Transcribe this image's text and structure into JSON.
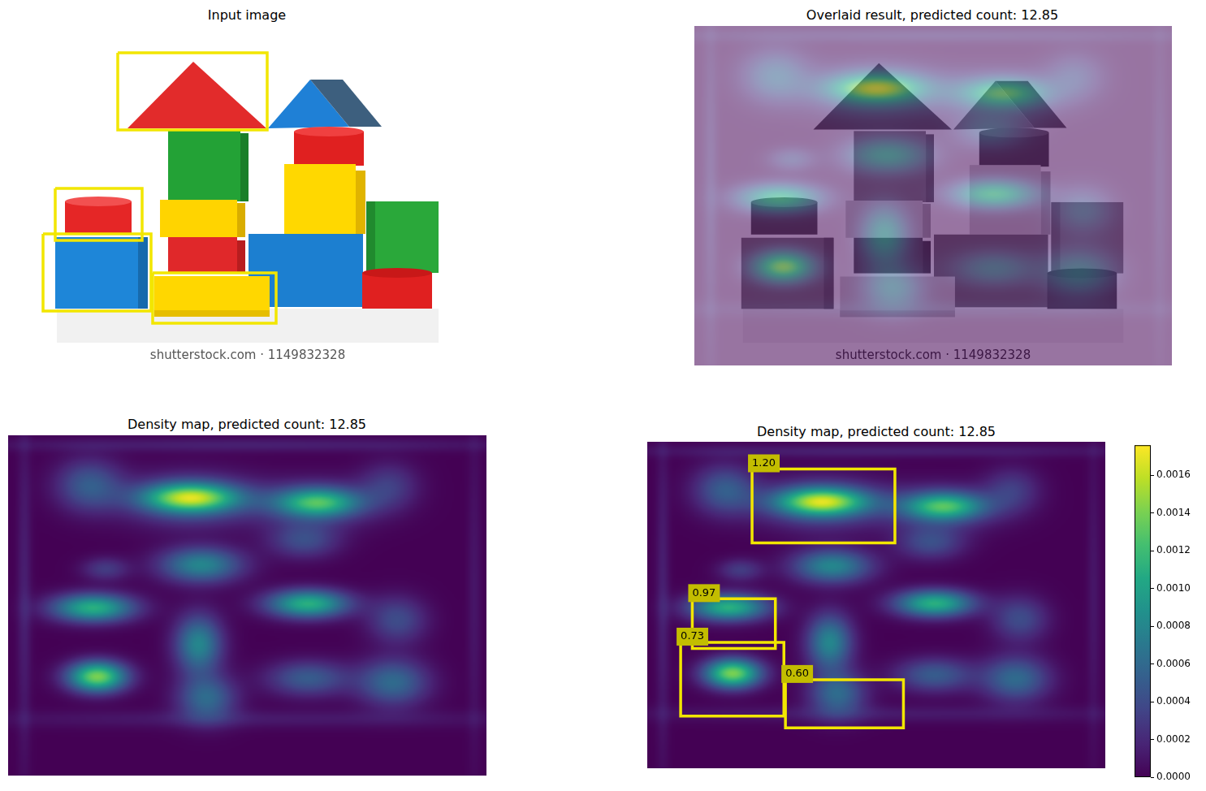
{
  "chart_data": [
    {
      "type": "image",
      "title": "Input image",
      "xlim": [
        0,
        590
      ],
      "ylim": [
        420,
        0
      ],
      "tick_labels": false,
      "watermark": "shutterstock.com · 1149832328",
      "boxes": [
        {
          "x0": 135,
          "y0": 35,
          "x1": 319,
          "y1": 130
        },
        {
          "x0": 58,
          "y0": 202,
          "x1": 165,
          "y1": 266
        },
        {
          "x0": 43,
          "y0": 258,
          "x1": 176,
          "y1": 353
        },
        {
          "x0": 178,
          "y0": 306,
          "x1": 330,
          "y1": 368
        }
      ]
    },
    {
      "type": "overlay",
      "title": "Overlaid result, predicted count: 12.85",
      "xlim": [
        0,
        590
      ],
      "ylim": [
        420,
        0
      ],
      "tick_labels": false,
      "watermark": "shutterstock.com · 1149832328"
    },
    {
      "type": "heatmap",
      "title": "Density map, predicted count: 12.85",
      "xlim": [
        0,
        590
      ],
      "ylim": [
        420,
        0
      ],
      "tick_labels": false
    },
    {
      "type": "heatmap",
      "title": "Density map, predicted count: 12.85",
      "xlim": [
        0,
        590
      ],
      "ylim": [
        420,
        0
      ],
      "tick_labels": false,
      "boxes": [
        {
          "x0": 135,
          "y0": 35,
          "x1": 319,
          "y1": 130,
          "value": 1.2,
          "label": "1.20"
        },
        {
          "x0": 58,
          "y0": 202,
          "x1": 165,
          "y1": 266,
          "value": 0.97,
          "label": "0.97"
        },
        {
          "x0": 43,
          "y0": 258,
          "x1": 176,
          "y1": 353,
          "value": 0.73,
          "label": "0.73"
        },
        {
          "x0": 178,
          "y0": 306,
          "x1": 330,
          "y1": 368,
          "value": 0.6,
          "label": "0.60"
        }
      ],
      "colorbar": {
        "clim": [
          0,
          0.00176
        ],
        "ticks": [
          {
            "value": 0,
            "label": "0.0000"
          },
          {
            "value": 0.0002,
            "label": "0.0002"
          },
          {
            "value": 0.0004,
            "label": "0.0004"
          },
          {
            "value": 0.0006,
            "label": "0.0006"
          },
          {
            "value": 0.0008,
            "label": "0.0008"
          },
          {
            "value": 0.001,
            "label": "0.0010"
          },
          {
            "value": 0.0012,
            "label": "0.0012"
          },
          {
            "value": 0.0014,
            "label": "0.0014"
          },
          {
            "value": 0.0016,
            "label": "0.0016"
          }
        ]
      }
    }
  ],
  "density": {
    "peaks": [
      {
        "x": 225,
        "y": 77,
        "sx": 40,
        "sy": 12,
        "value": 0.0012
      },
      {
        "x": 225,
        "y": 80,
        "sx": 55,
        "sy": 22,
        "value": 0.0005
      },
      {
        "x": 382,
        "y": 83,
        "sx": 35,
        "sy": 12,
        "value": 0.0009
      },
      {
        "x": 380,
        "y": 85,
        "sx": 50,
        "sy": 20,
        "value": 0.0004
      },
      {
        "x": 100,
        "y": 62,
        "sx": 28,
        "sy": 22,
        "value": 0.0005
      },
      {
        "x": 470,
        "y": 62,
        "sx": 25,
        "sy": 20,
        "value": 0.0003
      },
      {
        "x": 365,
        "y": 130,
        "sx": 30,
        "sy": 15,
        "value": 0.0004
      },
      {
        "x": 120,
        "y": 165,
        "sx": 20,
        "sy": 10,
        "value": 0.0003
      },
      {
        "x": 238,
        "y": 160,
        "sx": 35,
        "sy": 15,
        "value": 0.0008
      },
      {
        "x": 105,
        "y": 213,
        "sx": 35,
        "sy": 12,
        "value": 0.0011
      },
      {
        "x": 370,
        "y": 208,
        "sx": 35,
        "sy": 12,
        "value": 0.0011
      },
      {
        "x": 235,
        "y": 258,
        "sx": 20,
        "sy": 25,
        "value": 0.0008
      },
      {
        "x": 480,
        "y": 228,
        "sx": 25,
        "sy": 20,
        "value": 0.0004
      },
      {
        "x": 110,
        "y": 298,
        "sx": 25,
        "sy": 13,
        "value": 0.0014
      },
      {
        "x": 245,
        "y": 325,
        "sx": 25,
        "sy": 20,
        "value": 0.0006
      },
      {
        "x": 370,
        "y": 300,
        "sx": 35,
        "sy": 15,
        "value": 0.0005
      },
      {
        "x": 475,
        "y": 305,
        "sx": 30,
        "sy": 20,
        "value": 0.0006
      },
      {
        "x": 300,
        "y": 12,
        "sx": 250,
        "sy": 6,
        "value": 0.00015
      },
      {
        "x": 300,
        "y": 350,
        "sx": 260,
        "sy": 8,
        "value": 0.00012
      },
      {
        "x": 20,
        "y": 200,
        "sx": 6,
        "sy": 150,
        "value": 0.00015
      },
      {
        "x": 575,
        "y": 200,
        "sx": 6,
        "sy": 150,
        "value": 0.0001
      }
    ]
  }
}
